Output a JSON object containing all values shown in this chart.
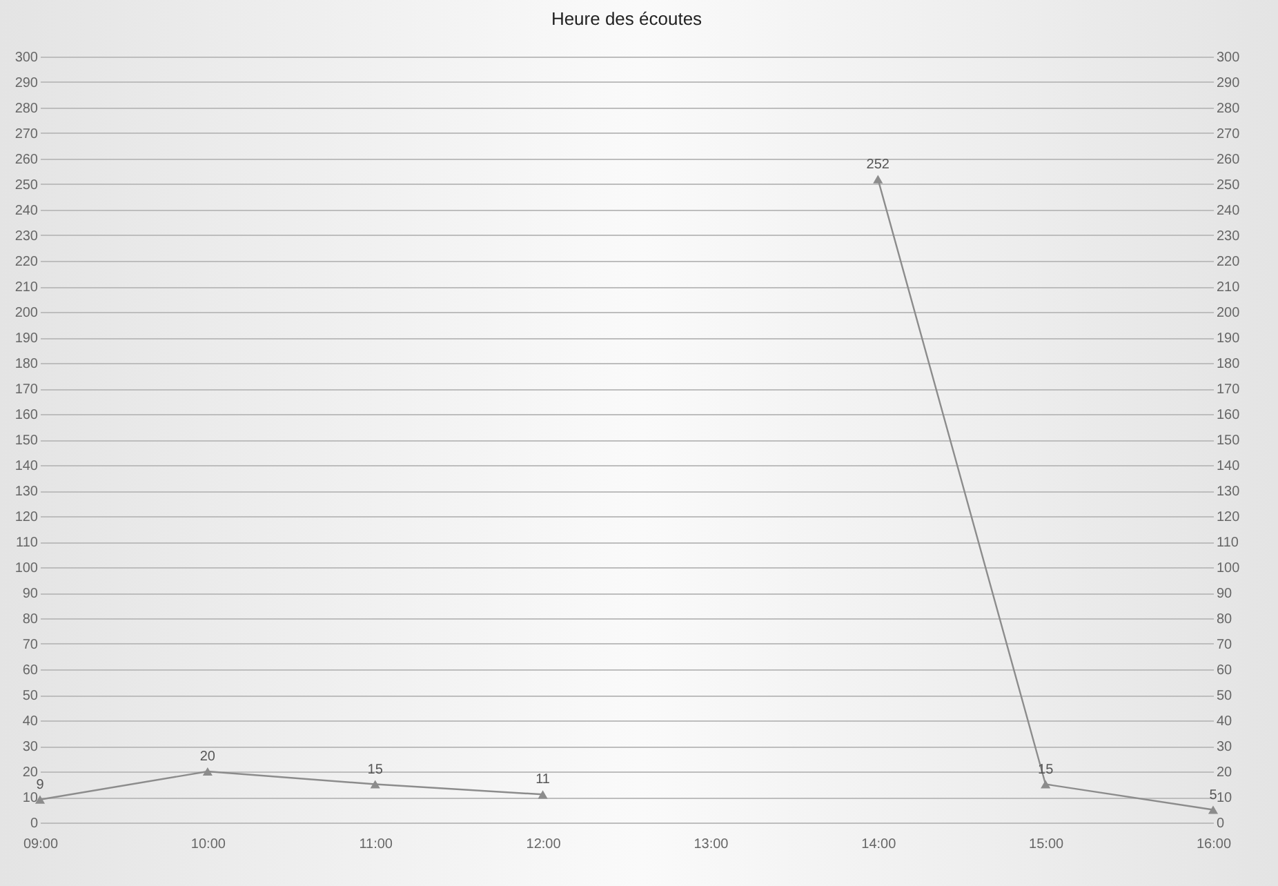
{
  "chart_data": {
    "type": "line",
    "title": "Heure des écoutes",
    "categories": [
      "09:00",
      "10:00",
      "11:00",
      "12:00",
      "13:00",
      "14:00",
      "15:00",
      "16:00"
    ],
    "series": [
      {
        "color": "#8c8c8c",
        "values": [
          9,
          20,
          15,
          11,
          null,
          252,
          15,
          5
        ]
      }
    ],
    "ylim": [
      0,
      300
    ],
    "yticks": [
      0,
      10,
      20,
      30,
      40,
      50,
      60,
      70,
      80,
      90,
      100,
      110,
      120,
      130,
      140,
      150,
      160,
      170,
      180,
      190,
      200,
      210,
      220,
      230,
      240,
      250,
      260,
      270,
      280,
      290,
      300
    ],
    "y2lim": [
      0,
      300
    ],
    "y2ticks": [
      0,
      10,
      20,
      30,
      40,
      50,
      60,
      70,
      80,
      90,
      100,
      110,
      120,
      130,
      140,
      150,
      160,
      170,
      180,
      190,
      200,
      210,
      220,
      230,
      240,
      250,
      260,
      270,
      280,
      290,
      300
    ],
    "grid": "y",
    "marker": "triangle",
    "line_style": "solid",
    "data_labels": true
  }
}
